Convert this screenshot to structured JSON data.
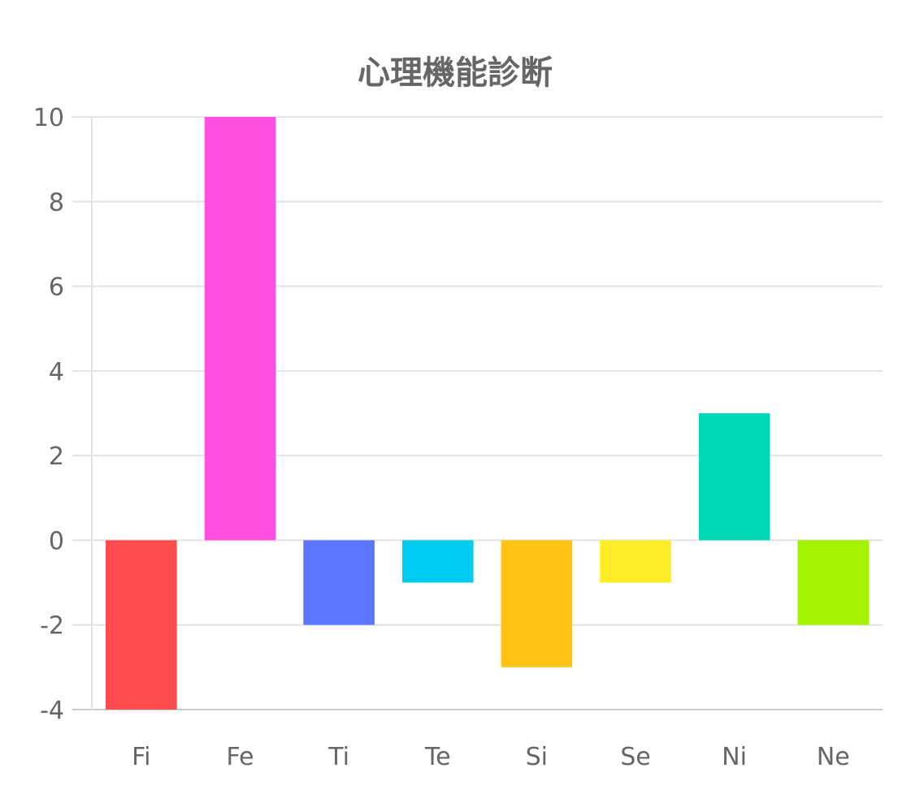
{
  "chart_data": {
    "type": "bar",
    "title": "心理機能診断",
    "categories": [
      "Fi",
      "Fe",
      "Ti",
      "Te",
      "Si",
      "Se",
      "Ni",
      "Ne"
    ],
    "series": [
      {
        "values": [
          -4,
          10,
          -2,
          -1,
          -3,
          -1,
          3,
          -2
        ],
        "colors": [
          "#ff4d4f",
          "#ff4fe0",
          "#5b75ff",
          "#00ccf2",
          "#ffc313",
          "#ffee27",
          "#00d8b8",
          "#a3f300"
        ]
      }
    ],
    "ylim": [
      -4,
      10
    ],
    "yticks": [
      -4,
      -2,
      0,
      2,
      4,
      6,
      8,
      10
    ],
    "grid": true,
    "legend": "none",
    "xlabel": "",
    "ylabel": ""
  },
  "colors": {
    "grid": "#e3e3e3",
    "axis": "#cccccc",
    "text": "#666666"
  }
}
